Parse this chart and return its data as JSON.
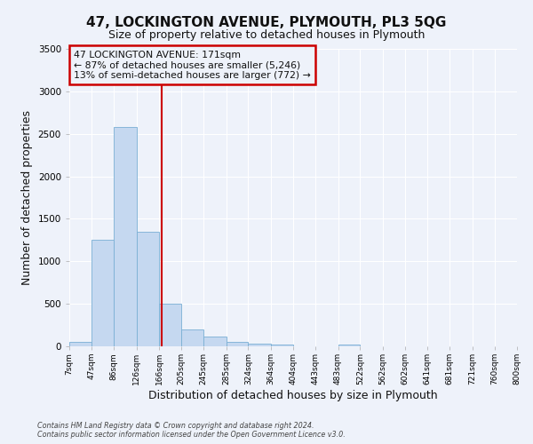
{
  "title": "47, LOCKINGTON AVENUE, PLYMOUTH, PL3 5QG",
  "subtitle": "Size of property relative to detached houses in Plymouth",
  "xlabel": "Distribution of detached houses by size in Plymouth",
  "ylabel": "Number of detached properties",
  "bin_labels": [
    "7sqm",
    "47sqm",
    "86sqm",
    "126sqm",
    "166sqm",
    "205sqm",
    "245sqm",
    "285sqm",
    "324sqm",
    "364sqm",
    "404sqm",
    "443sqm",
    "483sqm",
    "522sqm",
    "562sqm",
    "602sqm",
    "641sqm",
    "681sqm",
    "721sqm",
    "760sqm",
    "800sqm"
  ],
  "bin_edges": [
    7,
    47,
    86,
    126,
    166,
    205,
    245,
    285,
    324,
    364,
    404,
    443,
    483,
    522,
    562,
    602,
    641,
    681,
    721,
    760,
    800
  ],
  "bar_heights": [
    50,
    1250,
    2580,
    1350,
    500,
    200,
    110,
    50,
    30,
    20,
    0,
    0,
    20,
    0,
    0,
    0,
    0,
    0,
    0,
    0
  ],
  "bar_color": "#c5d8f0",
  "bar_edgecolor": "#7aafd4",
  "vline_x": 171,
  "vline_color": "#cc0000",
  "ylim": [
    0,
    3500
  ],
  "yticks": [
    0,
    500,
    1000,
    1500,
    2000,
    2500,
    3000,
    3500
  ],
  "annotation_title": "47 LOCKINGTON AVENUE: 171sqm",
  "annotation_line1": "← 87% of detached houses are smaller (5,246)",
  "annotation_line2": "13% of semi-detached houses are larger (772) →",
  "annotation_box_edgecolor": "#cc0000",
  "footer1": "Contains HM Land Registry data © Crown copyright and database right 2024.",
  "footer2": "Contains public sector information licensed under the Open Government Licence v3.0.",
  "bg_color": "#eef2fa",
  "grid_color": "#ffffff",
  "title_fontsize": 11,
  "subtitle_fontsize": 9,
  "xlabel_fontsize": 9,
  "ylabel_fontsize": 9
}
